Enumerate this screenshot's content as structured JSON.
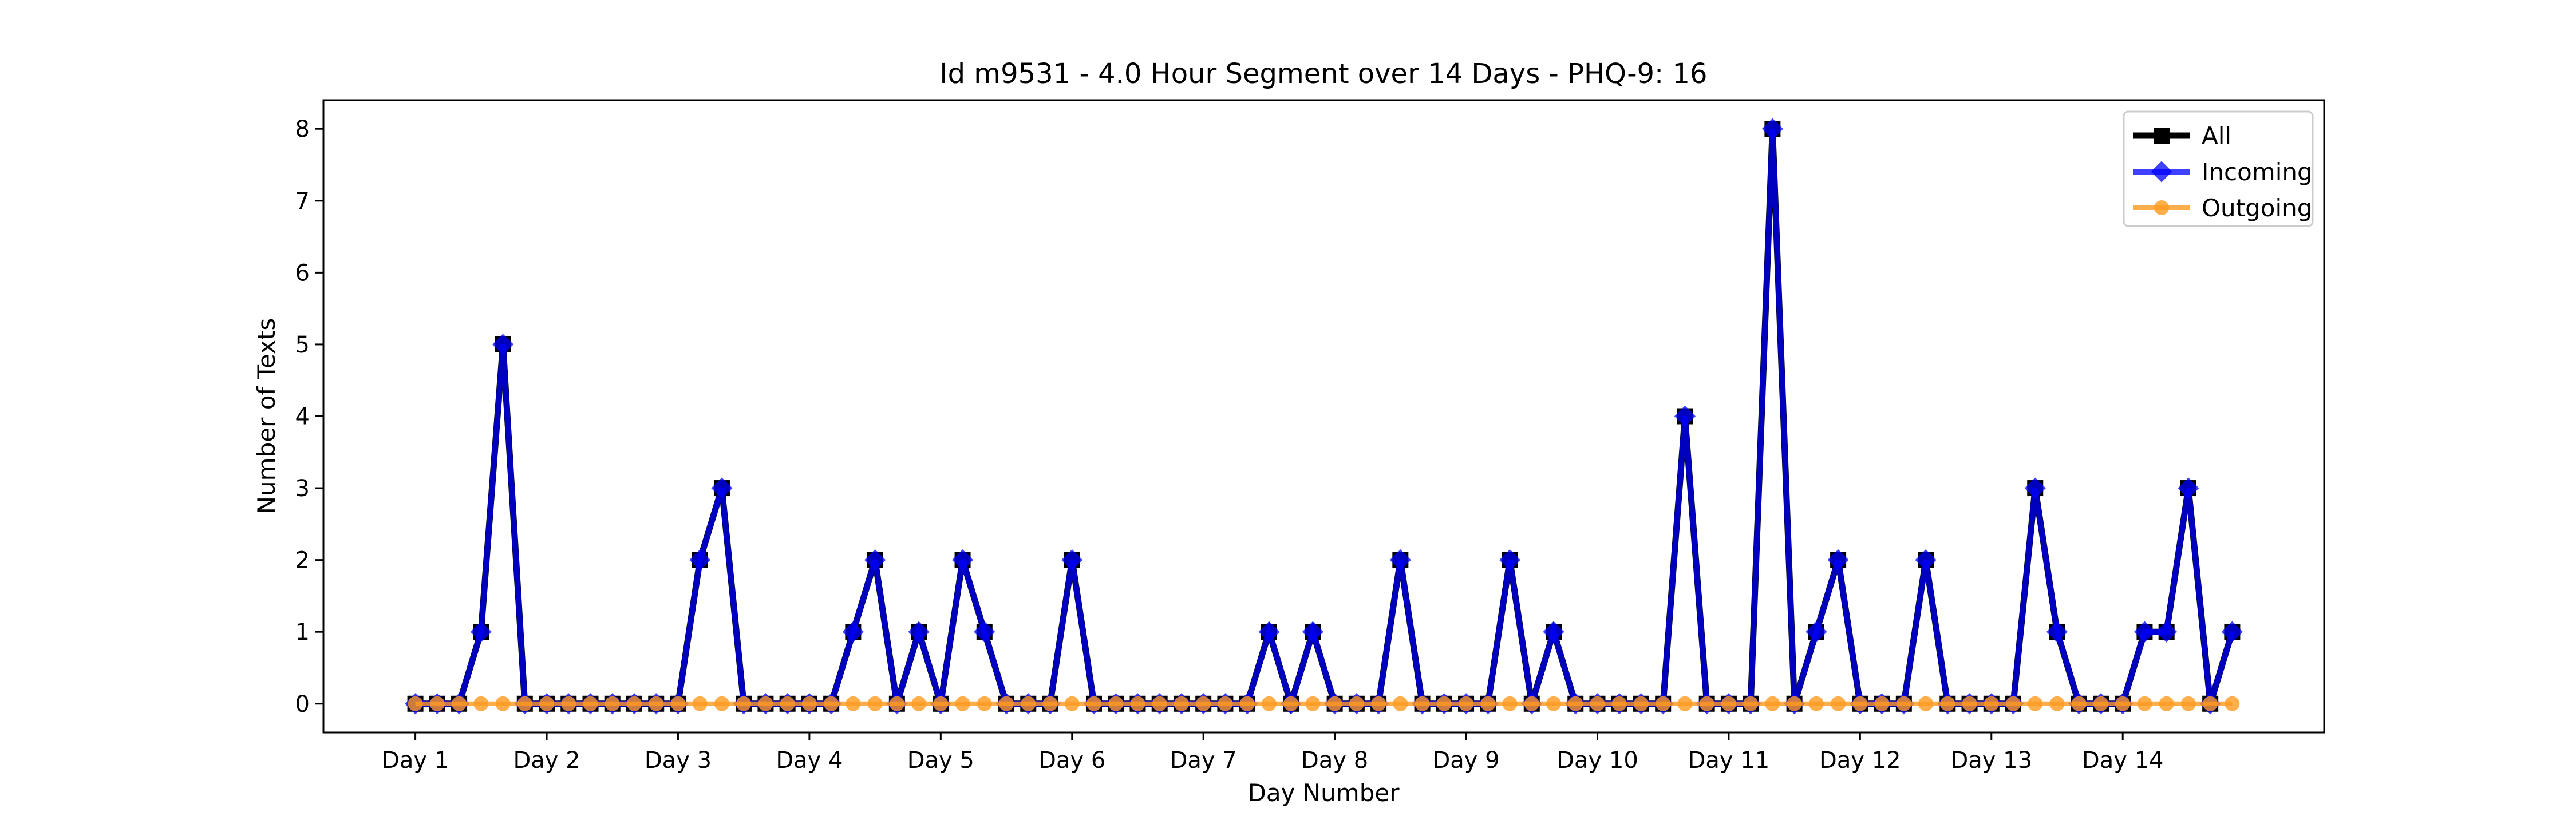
{
  "chart_data": {
    "type": "line",
    "title": "Id m9531 - 4.0 Hour Segment over 14 Days - PHQ-9: 16",
    "xlabel": "Day Number",
    "ylabel": "Number of Texts",
    "ylim": [
      -0.4,
      8.4
    ],
    "yticks": [
      0,
      1,
      2,
      3,
      4,
      5,
      6,
      7,
      8
    ],
    "xticks": [
      {
        "label": "Day 1",
        "pos": 0
      },
      {
        "label": "Day 2",
        "pos": 6
      },
      {
        "label": "Day 3",
        "pos": 12
      },
      {
        "label": "Day 4",
        "pos": 18
      },
      {
        "label": "Day 5",
        "pos": 24
      },
      {
        "label": "Day 6",
        "pos": 30
      },
      {
        "label": "Day 7",
        "pos": 36
      },
      {
        "label": "Day 8",
        "pos": 42
      },
      {
        "label": "Day 9",
        "pos": 48
      },
      {
        "label": "Day 10",
        "pos": 54
      },
      {
        "label": "Day 11",
        "pos": 60
      },
      {
        "label": "Day 12",
        "pos": 66
      },
      {
        "label": "Day 13",
        "pos": 72
      },
      {
        "label": "Day 14",
        "pos": 78
      }
    ],
    "x_segment_index": [
      0,
      1,
      2,
      3,
      4,
      5,
      6,
      7,
      8,
      9,
      10,
      11,
      12,
      13,
      14,
      15,
      16,
      17,
      18,
      19,
      20,
      21,
      22,
      23,
      24,
      25,
      26,
      27,
      28,
      29,
      30,
      31,
      32,
      33,
      34,
      35,
      36,
      37,
      38,
      39,
      40,
      41,
      42,
      43,
      44,
      45,
      46,
      47,
      48,
      49,
      50,
      51,
      52,
      53,
      54,
      55,
      56,
      57,
      58,
      59,
      60,
      61,
      62,
      63,
      64,
      65,
      66,
      67,
      68,
      69,
      70,
      71,
      72,
      73,
      74,
      75,
      76,
      77,
      78,
      79,
      80,
      81,
      82,
      83
    ],
    "legend_position": "upper right",
    "grid": false,
    "series": [
      {
        "name": "All",
        "color": "#000000",
        "marker": "square",
        "values": [
          0,
          0,
          0,
          1,
          5,
          0,
          0,
          0,
          0,
          0,
          0,
          0,
          0,
          2,
          3,
          0,
          0,
          0,
          0,
          0,
          1,
          2,
          0,
          1,
          0,
          2,
          1,
          0,
          0,
          0,
          2,
          0,
          0,
          0,
          0,
          0,
          0,
          0,
          0,
          1,
          0,
          1,
          0,
          0,
          0,
          2,
          0,
          0,
          0,
          0,
          2,
          0,
          1,
          0,
          0,
          0,
          0,
          0,
          4,
          0,
          0,
          0,
          8,
          0,
          1,
          2,
          0,
          0,
          0,
          2,
          0,
          0,
          0,
          0,
          3,
          1,
          0,
          0,
          0,
          1,
          1,
          3,
          0,
          1
        ]
      },
      {
        "name": "Incoming",
        "color": "#0000ff",
        "marker": "diamond",
        "values": [
          0,
          0,
          0,
          1,
          5,
          0,
          0,
          0,
          0,
          0,
          0,
          0,
          0,
          2,
          3,
          0,
          0,
          0,
          0,
          0,
          1,
          2,
          0,
          1,
          0,
          2,
          1,
          0,
          0,
          0,
          2,
          0,
          0,
          0,
          0,
          0,
          0,
          0,
          0,
          1,
          0,
          1,
          0,
          0,
          0,
          2,
          0,
          0,
          0,
          0,
          2,
          0,
          1,
          0,
          0,
          0,
          0,
          0,
          4,
          0,
          0,
          0,
          8,
          0,
          1,
          2,
          0,
          0,
          0,
          2,
          0,
          0,
          0,
          0,
          3,
          1,
          0,
          0,
          0,
          1,
          1,
          3,
          0,
          1
        ]
      },
      {
        "name": "Outgoing",
        "color": "#ff9a1f",
        "marker": "circle",
        "values": [
          0,
          0,
          0,
          0,
          0,
          0,
          0,
          0,
          0,
          0,
          0,
          0,
          0,
          0,
          0,
          0,
          0,
          0,
          0,
          0,
          0,
          0,
          0,
          0,
          0,
          0,
          0,
          0,
          0,
          0,
          0,
          0,
          0,
          0,
          0,
          0,
          0,
          0,
          0,
          0,
          0,
          0,
          0,
          0,
          0,
          0,
          0,
          0,
          0,
          0,
          0,
          0,
          0,
          0,
          0,
          0,
          0,
          0,
          0,
          0,
          0,
          0,
          0,
          0,
          0,
          0,
          0,
          0,
          0,
          0,
          0,
          0,
          0,
          0,
          0,
          0,
          0,
          0,
          0,
          0,
          0,
          0,
          0,
          0
        ]
      }
    ]
  }
}
